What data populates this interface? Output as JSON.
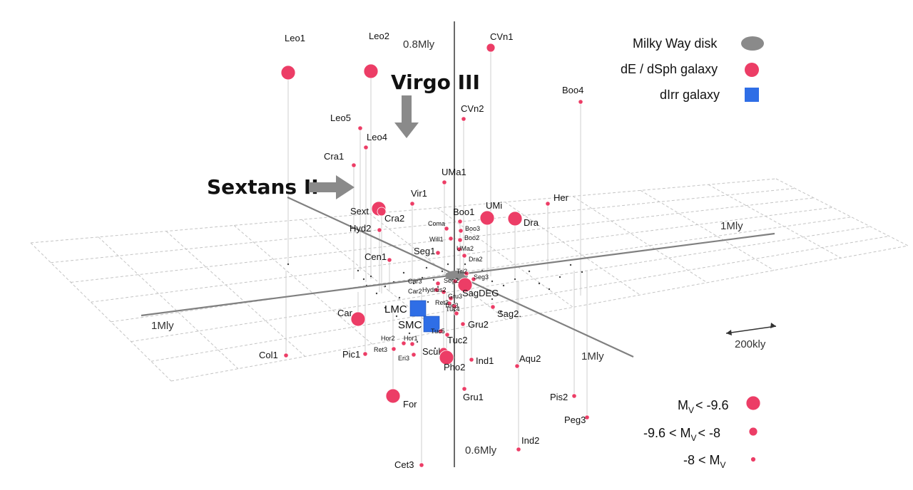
{
  "axes": {
    "top_label": "0.8Mly",
    "bottom_label": "0.6Mly",
    "left_label": "1Mly",
    "right_label": "1Mly",
    "front_label": "1Mly",
    "scale_label": "200kly"
  },
  "callouts": [
    {
      "id": "virgo3",
      "text": "Virgo III"
    },
    {
      "id": "sextans2",
      "text": "Sextans II"
    }
  ],
  "legend_types": [
    {
      "label": "Milky Way disk",
      "shape": "ellipse",
      "color": "#8a8a8a"
    },
    {
      "label": "dE / dSph galaxy",
      "shape": "circle",
      "color": "#ec3d66"
    },
    {
      "label": "dIrr galaxy",
      "shape": "square",
      "color": "#2f6ee6"
    }
  ],
  "legend_sizes": [
    {
      "label": "M",
      "sub": "V",
      "suffix": "< -9.6",
      "prefix": "",
      "size": "large"
    },
    {
      "label": "M",
      "sub": "V",
      "suffix": "< -8",
      "prefix": "-9.6 < ",
      "size": "medium"
    },
    {
      "label": "M",
      "sub": "V",
      "suffix": "",
      "prefix": "-8 < ",
      "size": "small"
    }
  ],
  "galaxies": [
    {
      "name": "Leo1",
      "size": "large",
      "type": "dsph"
    },
    {
      "name": "Leo2",
      "size": "large",
      "type": "dsph"
    },
    {
      "name": "CVn1",
      "size": "medium",
      "type": "dsph"
    },
    {
      "name": "Boo4",
      "size": "small",
      "type": "dsph"
    },
    {
      "name": "CVn2",
      "size": "small",
      "type": "dsph"
    },
    {
      "name": "Leo5",
      "size": "small",
      "type": "dsph"
    },
    {
      "name": "Leo4",
      "size": "small",
      "type": "dsph"
    },
    {
      "name": "Cra1",
      "size": "small",
      "type": "dsph"
    },
    {
      "name": "UMa1",
      "size": "small",
      "type": "dsph"
    },
    {
      "name": "Vir1",
      "size": "small",
      "type": "dsph"
    },
    {
      "name": "Her",
      "size": "small",
      "type": "dsph"
    },
    {
      "name": "Sext",
      "size": "large",
      "type": "dsph"
    },
    {
      "name": "Cra2",
      "size": "medium",
      "type": "dsph"
    },
    {
      "name": "Boo1",
      "size": "small",
      "type": "dsph"
    },
    {
      "name": "UMi",
      "size": "large",
      "type": "dsph"
    },
    {
      "name": "Dra",
      "size": "large",
      "type": "dsph"
    },
    {
      "name": "Hyd2",
      "size": "small",
      "type": "dsph"
    },
    {
      "name": "Coma",
      "size": "small",
      "type": "dsph"
    },
    {
      "name": "Boo3",
      "size": "small",
      "type": "dsph"
    },
    {
      "name": "Will1",
      "size": "small",
      "type": "dsph"
    },
    {
      "name": "Boo2",
      "size": "small",
      "type": "dsph"
    },
    {
      "name": "UMa2",
      "size": "small",
      "type": "dsph"
    },
    {
      "name": "Seg1",
      "size": "small",
      "type": "dsph"
    },
    {
      "name": "Dra2",
      "size": "small",
      "type": "dsph"
    },
    {
      "name": "Cen1",
      "size": "small",
      "type": "dsph"
    },
    {
      "name": "Tri2",
      "size": "small",
      "type": "dsph"
    },
    {
      "name": "Seg3",
      "size": "small",
      "type": "dsph"
    },
    {
      "name": "Seg2",
      "size": "small",
      "type": "dsph"
    },
    {
      "name": "Car3",
      "size": "small",
      "type": "dsph"
    },
    {
      "name": "Car2",
      "size": "small",
      "type": "dsph"
    },
    {
      "name": "Hydrus2",
      "size": "small",
      "type": "dsph"
    },
    {
      "name": "Gru3",
      "size": "small",
      "type": "dsph"
    },
    {
      "name": "SagDEG",
      "size": "large",
      "type": "dsph"
    },
    {
      "name": "Ret2",
      "size": "small",
      "type": "dsph"
    },
    {
      "name": "Tuc3",
      "size": "small",
      "type": "dsph"
    },
    {
      "name": "Tuc4",
      "size": "small",
      "type": "dsph"
    },
    {
      "name": "LMC",
      "size": "large",
      "type": "dirr"
    },
    {
      "name": "SMC",
      "size": "large",
      "type": "dirr"
    },
    {
      "name": "Sag2.",
      "size": "small",
      "type": "dsph"
    },
    {
      "name": "Car",
      "size": "large",
      "type": "dsph"
    },
    {
      "name": "Gru2",
      "size": "small",
      "type": "dsph"
    },
    {
      "name": "Tuc5",
      "size": "small",
      "type": "dsph"
    },
    {
      "name": "Tuc2",
      "size": "small",
      "type": "dsph"
    },
    {
      "name": "Hor2",
      "size": "small",
      "type": "dsph"
    },
    {
      "name": "Hor1",
      "size": "small",
      "type": "dsph"
    },
    {
      "name": "Ret3",
      "size": "small",
      "type": "dsph"
    },
    {
      "name": "Eri3",
      "size": "small",
      "type": "dsph"
    },
    {
      "name": "Scul",
      "size": "medium",
      "type": "dsph"
    },
    {
      "name": "Col1",
      "size": "small",
      "type": "dsph"
    },
    {
      "name": "Pic1",
      "size": "small",
      "type": "dsph"
    },
    {
      "name": "Pho2",
      "size": "large",
      "type": "dsph"
    },
    {
      "name": "Ind1",
      "size": "small",
      "type": "dsph"
    },
    {
      "name": "Aqu2",
      "size": "small",
      "type": "dsph"
    },
    {
      "name": "For",
      "size": "large",
      "type": "dsph"
    },
    {
      "name": "Gru1",
      "size": "small",
      "type": "dsph"
    },
    {
      "name": "Pis2",
      "size": "small",
      "type": "dsph"
    },
    {
      "name": "Peg3",
      "size": "small",
      "type": "dsph"
    },
    {
      "name": "Ind2",
      "size": "small",
      "type": "dsph"
    },
    {
      "name": "Cet3",
      "size": "small",
      "type": "dsph"
    }
  ]
}
